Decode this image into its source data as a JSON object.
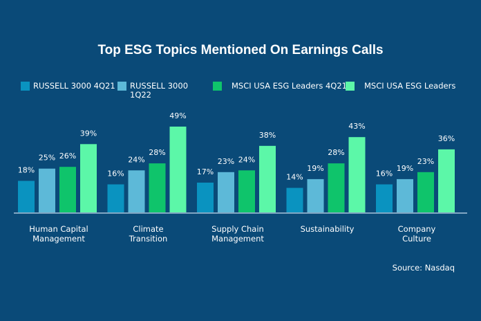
{
  "chart_data": {
    "type": "bar",
    "title": "Top ESG  Topics Mentioned On Earnings Calls",
    "categories": [
      "Human Capital\nManagement",
      "Climate\nTransition",
      "Supply Chain\nManagement",
      "Sustainability",
      "Company\nCulture"
    ],
    "series": [
      {
        "name": "RUSSELL  3000 4Q21",
        "color": "#0a93c0",
        "values": [
          18,
          16,
          17,
          14,
          16
        ]
      },
      {
        "name": "RUSSELL  3000 1Q22",
        "color": "#5db9d8",
        "values": [
          25,
          24,
          23,
          19,
          19
        ]
      },
      {
        "name": "MSCI USA ESG Leaders 4Q21",
        "color": "#0fc46b",
        "values": [
          26,
          28,
          24,
          28,
          23
        ]
      },
      {
        "name": "MSCI USA ESG Leaders",
        "color": "#5cf7a8",
        "values": [
          39,
          49,
          38,
          43,
          36
        ]
      }
    ],
    "value_suffix": "%",
    "ylim": [
      0,
      50
    ],
    "grid": false,
    "legend": "top",
    "source": "Source: Nasdaq"
  }
}
